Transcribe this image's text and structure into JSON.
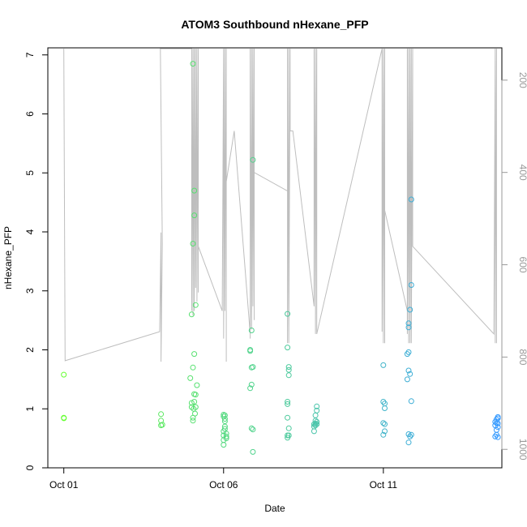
{
  "chart_data": {
    "type": "scatter",
    "title": "ATOM3 Southbound nHexane_PFP",
    "xlabel": "Date",
    "ylabel": "nHexane_PFP",
    "xlim": [
      "2016-09-30T12:00",
      "2016-10-14T17:00"
    ],
    "ylim": [
      0,
      7.12
    ],
    "x_ticks": [
      {
        "label": "Oct 01",
        "date": "2016-10-01"
      },
      {
        "label": "Oct 06",
        "date": "2016-10-06"
      },
      {
        "label": "Oct 11",
        "date": "2016-10-11"
      }
    ],
    "y_ticks": [
      0,
      1,
      2,
      3,
      4,
      5,
      6,
      7
    ],
    "y2_axis": {
      "label": "",
      "reversed": true,
      "range": [
        130,
        1040
      ],
      "ticks": [
        200,
        400,
        600,
        800,
        1000
      ],
      "color": "#999999"
    },
    "grid": false,
    "legend": "none",
    "point_style": "open-circle",
    "colors": {
      "line": "#bebebe",
      "axis": "#000000",
      "right_axis": "#999999",
      "point_start": "#66ff33",
      "point_end": "#3399ff"
    },
    "points": [
      [
        "2016-10-01T00:00",
        1.58
      ],
      [
        "2016-10-01T00:00",
        0.85
      ],
      [
        "2016-10-01T00:05",
        0.84
      ],
      [
        "2016-10-04T01:00",
        0.91
      ],
      [
        "2016-10-04T01:00",
        0.8
      ],
      [
        "2016-10-04T01:00",
        0.72
      ],
      [
        "2016-10-04T02:00",
        0.73
      ],
      [
        "2016-10-04T23:00",
        1.52
      ],
      [
        "2016-10-05T00:00",
        2.6
      ],
      [
        "2016-10-05T00:00",
        1.1
      ],
      [
        "2016-10-05T00:00",
        1.03
      ],
      [
        "2016-10-05T01:00",
        6.85
      ],
      [
        "2016-10-05T01:00",
        3.8
      ],
      [
        "2016-10-05T01:00",
        1.7
      ],
      [
        "2016-10-05T01:00",
        0.85
      ],
      [
        "2016-10-05T01:00",
        0.8
      ],
      [
        "2016-10-05T02:00",
        4.7
      ],
      [
        "2016-10-05T02:00",
        4.28
      ],
      [
        "2016-10-05T02:00",
        1.93
      ],
      [
        "2016-10-05T02:00",
        1.25
      ],
      [
        "2016-10-05T02:00",
        1.12
      ],
      [
        "2016-10-05T03:00",
        2.76
      ],
      [
        "2016-10-05T03:00",
        1.03
      ],
      [
        "2016-10-05T03:00",
        1.24
      ],
      [
        "2016-10-05T01:30",
        1.0
      ],
      [
        "2016-10-05T02:30",
        0.92
      ],
      [
        "2016-10-05T04:00",
        1.4
      ],
      [
        "2016-10-06T00:00",
        0.9
      ],
      [
        "2016-10-06T00:00",
        0.87
      ],
      [
        "2016-10-06T00:00",
        0.62
      ],
      [
        "2016-10-06T00:00",
        0.55
      ],
      [
        "2016-10-06T00:00",
        0.47
      ],
      [
        "2016-10-06T00:00",
        0.39
      ],
      [
        "2016-10-06T01:00",
        0.89
      ],
      [
        "2016-10-06T01:00",
        0.83
      ],
      [
        "2016-10-06T01:00",
        0.79
      ],
      [
        "2016-10-06T01:00",
        0.7
      ],
      [
        "2016-10-06T01:00",
        0.66
      ],
      [
        "2016-10-06T02:00",
        0.58
      ],
      [
        "2016-10-06T02:00",
        0.53
      ],
      [
        "2016-10-06T02:00",
        0.5
      ],
      [
        "2016-10-06T20:00",
        2.0
      ],
      [
        "2016-10-06T20:00",
        1.98
      ],
      [
        "2016-10-06T20:00",
        1.35
      ],
      [
        "2016-10-06T21:00",
        2.33
      ],
      [
        "2016-10-06T21:00",
        1.7
      ],
      [
        "2016-10-06T21:00",
        1.41
      ],
      [
        "2016-10-06T21:00",
        0.67
      ],
      [
        "2016-10-06T22:00",
        5.22
      ],
      [
        "2016-10-06T22:00",
        1.71
      ],
      [
        "2016-10-06T22:00",
        0.65
      ],
      [
        "2016-10-06T22:00",
        0.27
      ],
      [
        "2016-10-08T00:00",
        2.61
      ],
      [
        "2016-10-08T00:00",
        2.04
      ],
      [
        "2016-10-08T00:00",
        1.12
      ],
      [
        "2016-10-08T00:00",
        1.08
      ],
      [
        "2016-10-08T00:00",
        0.85
      ],
      [
        "2016-10-08T00:00",
        0.55
      ],
      [
        "2016-10-08T00:00",
        0.51
      ],
      [
        "2016-10-08T01:00",
        1.71
      ],
      [
        "2016-10-08T01:00",
        1.66
      ],
      [
        "2016-10-08T01:00",
        1.57
      ],
      [
        "2016-10-08T01:00",
        0.67
      ],
      [
        "2016-10-08T01:00",
        0.55
      ],
      [
        "2016-10-08T20:00",
        0.74
      ],
      [
        "2016-10-08T20:00",
        0.7
      ],
      [
        "2016-10-08T20:00",
        0.62
      ],
      [
        "2016-10-08T21:00",
        0.89
      ],
      [
        "2016-10-08T21:00",
        0.8
      ],
      [
        "2016-10-08T21:00",
        0.75
      ],
      [
        "2016-10-08T21:00",
        0.72
      ],
      [
        "2016-10-08T22:00",
        1.04
      ],
      [
        "2016-10-08T22:00",
        0.97
      ],
      [
        "2016-10-08T22:00",
        0.78
      ],
      [
        "2016-10-08T22:00",
        0.74
      ],
      [
        "2016-10-11T00:00",
        1.74
      ],
      [
        "2016-10-11T00:00",
        1.12
      ],
      [
        "2016-10-11T00:00",
        0.76
      ],
      [
        "2016-10-11T00:00",
        0.56
      ],
      [
        "2016-10-11T01:00",
        1.09
      ],
      [
        "2016-10-11T01:00",
        1.01
      ],
      [
        "2016-10-11T01:00",
        0.74
      ],
      [
        "2016-10-11T01:00",
        0.62
      ],
      [
        "2016-10-11T18:00",
        1.93
      ],
      [
        "2016-10-11T18:00",
        1.5
      ],
      [
        "2016-10-11T19:00",
        2.45
      ],
      [
        "2016-10-11T19:00",
        2.38
      ],
      [
        "2016-10-11T19:00",
        1.96
      ],
      [
        "2016-10-11T19:00",
        1.65
      ],
      [
        "2016-10-11T19:00",
        0.57
      ],
      [
        "2016-10-11T19:00",
        0.43
      ],
      [
        "2016-10-11T20:00",
        2.68
      ],
      [
        "2016-10-11T20:00",
        1.59
      ],
      [
        "2016-10-11T20:00",
        0.53
      ],
      [
        "2016-10-11T21:00",
        4.55
      ],
      [
        "2016-10-11T21:00",
        3.1
      ],
      [
        "2016-10-11T21:00",
        1.13
      ],
      [
        "2016-10-11T21:00",
        0.56
      ],
      [
        "2016-10-14T12:00",
        0.78
      ],
      [
        "2016-10-14T12:00",
        0.72
      ],
      [
        "2016-10-14T12:00",
        0.53
      ],
      [
        "2016-10-14T13:00",
        0.82
      ],
      [
        "2016-10-14T13:00",
        0.76
      ],
      [
        "2016-10-14T13:00",
        0.64
      ],
      [
        "2016-10-14T13:00",
        0.56
      ],
      [
        "2016-10-14T14:00",
        0.86
      ],
      [
        "2016-10-14T14:00",
        0.84
      ],
      [
        "2016-10-14T14:00",
        0.75
      ],
      [
        "2016-10-14T14:00",
        0.69
      ],
      [
        "2016-10-14T14:00",
        0.52
      ]
    ],
    "line_series": {
      "axis": "y2",
      "points": [
        [
          "2016-10-01T00:00",
          130
        ],
        [
          "2016-10-01T00:00",
          130
        ],
        [
          "2016-10-01T01:00",
          808
        ],
        [
          "2016-10-04T00:00",
          745
        ],
        [
          "2016-10-04T01:00",
          530
        ],
        [
          "2016-10-04T01:00",
          810
        ],
        [
          "2016-10-04T02:00",
          555
        ],
        [
          "2016-10-04T00:30",
          130
        ],
        [
          "2016-10-05T00:00",
          130
        ],
        [
          "2016-10-05T00:00",
          700
        ],
        [
          "2016-10-05T01:00",
          130
        ],
        [
          "2016-10-05T01:00",
          710
        ],
        [
          "2016-10-05T02:00",
          130
        ],
        [
          "2016-10-05T02:00",
          700
        ],
        [
          "2016-10-05T03:00",
          130
        ],
        [
          "2016-10-05T03:00",
          650
        ],
        [
          "2016-10-05T04:00",
          130
        ],
        [
          "2016-10-05T04:00",
          680
        ],
        [
          "2016-10-05T05:00",
          130
        ],
        [
          "2016-10-05T05:00",
          660
        ],
        [
          "2016-10-05T05:00",
          560
        ],
        [
          "2016-10-05T23:00",
          700
        ],
        [
          "2016-10-06T00:00",
          130
        ],
        [
          "2016-10-06T00:00",
          760
        ],
        [
          "2016-10-06T01:00",
          130
        ],
        [
          "2016-10-06T01:00",
          700
        ],
        [
          "2016-10-06T02:00",
          130
        ],
        [
          "2016-10-06T02:00",
          810
        ],
        [
          "2016-10-06T02:00",
          420
        ],
        [
          "2016-10-06T08:00",
          310
        ],
        [
          "2016-10-06T20:00",
          750
        ],
        [
          "2016-10-06T20:00",
          130
        ],
        [
          "2016-10-06T20:00",
          760
        ],
        [
          "2016-10-06T21:00",
          130
        ],
        [
          "2016-10-06T21:00",
          740
        ],
        [
          "2016-10-06T22:00",
          130
        ],
        [
          "2016-10-06T22:00",
          690
        ],
        [
          "2016-10-06T23:00",
          130
        ],
        [
          "2016-10-06T23:00",
          720
        ],
        [
          "2016-10-06T23:00",
          400
        ],
        [
          "2016-10-08T00:00",
          440
        ],
        [
          "2016-10-08T00:00",
          130
        ],
        [
          "2016-10-08T00:00",
          770
        ],
        [
          "2016-10-08T01:00",
          130
        ],
        [
          "2016-10-08T01:00",
          770
        ],
        [
          "2016-10-08T02:00",
          130
        ],
        [
          "2016-10-08T02:00",
          310
        ],
        [
          "2016-10-08T04:00",
          310
        ],
        [
          "2016-10-08T20:00",
          690
        ],
        [
          "2016-10-08T20:00",
          130
        ],
        [
          "2016-10-08T20:00",
          690
        ],
        [
          "2016-10-08T21:00",
          130
        ],
        [
          "2016-10-08T21:00",
          750
        ],
        [
          "2016-10-08T22:00",
          130
        ],
        [
          "2016-10-08T22:00",
          750
        ],
        [
          "2016-10-10T23:00",
          130
        ],
        [
          "2016-10-10T23:00",
          745
        ],
        [
          "2016-10-11T00:00",
          130
        ],
        [
          "2016-10-11T00:00",
          770
        ],
        [
          "2016-10-11T01:00",
          130
        ],
        [
          "2016-10-11T01:00",
          770
        ],
        [
          "2016-10-11T01:00",
          482
        ],
        [
          "2016-10-11T18:00",
          700
        ],
        [
          "2016-10-11T18:00",
          130
        ],
        [
          "2016-10-11T18:00",
          750
        ],
        [
          "2016-10-11T19:00",
          130
        ],
        [
          "2016-10-11T19:00",
          770
        ],
        [
          "2016-10-11T20:00",
          130
        ],
        [
          "2016-10-11T20:00",
          770
        ],
        [
          "2016-10-11T21:00",
          130
        ],
        [
          "2016-10-11T21:00",
          770
        ],
        [
          "2016-10-11T22:00",
          130
        ],
        [
          "2016-10-11T22:00",
          560
        ],
        [
          "2016-10-14T11:00",
          750
        ],
        [
          "2016-10-14T12:00",
          130
        ],
        [
          "2016-10-14T12:00",
          770
        ],
        [
          "2016-10-14T13:00",
          130
        ],
        [
          "2016-10-14T13:00",
          770
        ]
      ]
    }
  }
}
